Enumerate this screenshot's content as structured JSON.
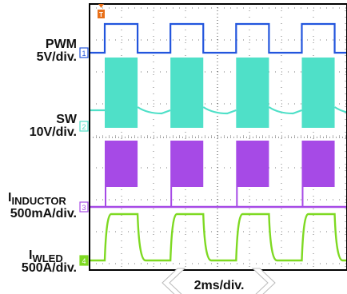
{
  "chart_data": {
    "type": "line",
    "title": "",
    "trigger_marker": "T",
    "timebase_label": "2ms/div.",
    "grid": true,
    "pwm_period_div": 2.6,
    "pwm_duty": 0.5,
    "channels": [
      {
        "number": "1",
        "name": "PWM",
        "name_sub": "",
        "scale": "5V/div.",
        "color": "#2255dd",
        "waveform": "square",
        "low_level_div": 0.9,
        "high_level_div": 0.75
      },
      {
        "number": "2",
        "name": "SW",
        "name_sub": "",
        "scale": "10V/div.",
        "color": "#4fe0c8",
        "waveform": "switching-bursts",
        "burst_amplitude_div": 2.6,
        "idle_level_div": 0.9
      },
      {
        "number": "3",
        "name": "I",
        "name_sub": "INDUCTOR",
        "scale": "500mA/div.",
        "color": "#a64ae6",
        "waveform": "switching-bursts",
        "burst_amplitude_div": 1.7,
        "idle_level_div": 0.0
      },
      {
        "number": "4",
        "name": "I",
        "name_sub": "WLED",
        "scale": "500A/div.",
        "color": "#7ed922",
        "waveform": "square",
        "low_level_div": 0.0,
        "high_level_div": 1.6
      }
    ]
  }
}
